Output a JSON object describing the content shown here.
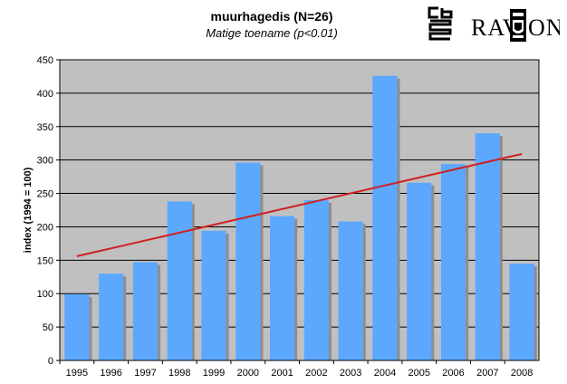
{
  "chart_data": {
    "type": "bar",
    "title": "muurhagedis (N=26)",
    "subtitle": "Matige toename (p<0.01)",
    "xlabel": "",
    "ylabel": "index (1994 = 100)",
    "categories": [
      "1995",
      "1996",
      "1997",
      "1998",
      "1999",
      "2000",
      "2001",
      "2002",
      "2003",
      "2004",
      "2005",
      "2006",
      "2007",
      "2008"
    ],
    "values": [
      99,
      130,
      147,
      238,
      194,
      296,
      216,
      240,
      208,
      426,
      266,
      294,
      340,
      145
    ],
    "ylim": [
      0,
      450
    ],
    "yticks": [
      0,
      50,
      100,
      150,
      200,
      250,
      300,
      350,
      400,
      450
    ],
    "trendline": {
      "x_start": "1995",
      "y_start": 156,
      "x_end": "2008",
      "y_end": 309
    },
    "grid": true,
    "colors": {
      "bar": "#5ca8ff",
      "bar_shadow": "#8e8e8e",
      "plot_bg": "#c0c0c0",
      "trend": "#d02020",
      "grid": "#000000"
    }
  },
  "logos": {
    "cbs": {
      "icon": "cbs-logo-icon"
    },
    "ravon": {
      "text_left": "RAV",
      "text_right": "ON",
      "icon": "ravon-crest-icon"
    }
  }
}
